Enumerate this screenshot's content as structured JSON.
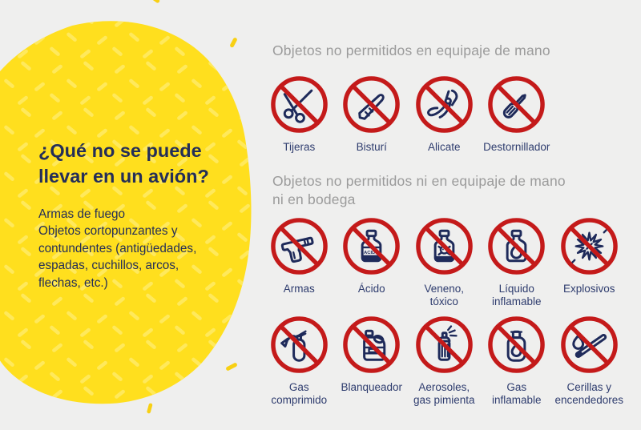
{
  "colors": {
    "background": "#efefee",
    "yellow": "#ffdf1e",
    "yellow_texture": "#ffe95c",
    "decor_yellow": "#f8d013",
    "navy": "#1e2a5a",
    "text_navy": "#242e58",
    "label_navy": "#2e3c6e",
    "heading_gray": "#9b9b9b",
    "red": "#c41a1a"
  },
  "title": "¿Qué no se puede\nllevar en un avión?",
  "description": "Armas de fuego\nObjetos cortopunzantes y\ncontundentes (antigüedades,\nespadas, cuchillos, arcos,\nflechas, etc.)",
  "icon_texts": {
    "acid_bottle_label": "ACIDO"
  },
  "sections": [
    {
      "heading": "Objetos no permitidos en equipaje de mano",
      "rows": [
        [
          {
            "label": "Tijeras",
            "icon": "scissors-icon"
          },
          {
            "label": "Bisturí",
            "icon": "scalpel-icon"
          },
          {
            "label": "Alicate",
            "icon": "pliers-icon"
          },
          {
            "label": "Destornillador",
            "icon": "screwdriver-icon"
          }
        ]
      ]
    },
    {
      "heading": "Objetos no permitidos ni en equipaje de mano\nni en bodega",
      "rows": [
        [
          {
            "label": "Armas",
            "icon": "handgun-icon"
          },
          {
            "label": "Ácido",
            "icon": "acid-bottle-icon"
          },
          {
            "label": "Veneno,\ntóxico",
            "icon": "poison-bottle-icon"
          },
          {
            "label": "Líquido\ninflamable",
            "icon": "flammable-liquid-icon"
          },
          {
            "label": "Explosivos",
            "icon": "explosion-icon"
          }
        ],
        [
          {
            "label": "Gas\ncomprimido",
            "icon": "fire-extinguisher-icon"
          },
          {
            "label": "Blanqueador",
            "icon": "bleach-jug-icon"
          },
          {
            "label": "Aerosoles,\ngas pimienta",
            "icon": "aerosol-can-icon"
          },
          {
            "label": "Gas\ninflamable",
            "icon": "gas-cylinder-icon"
          },
          {
            "label": "Cerillas y\nencendedores",
            "icon": "match-flame-icon"
          }
        ]
      ]
    }
  ]
}
